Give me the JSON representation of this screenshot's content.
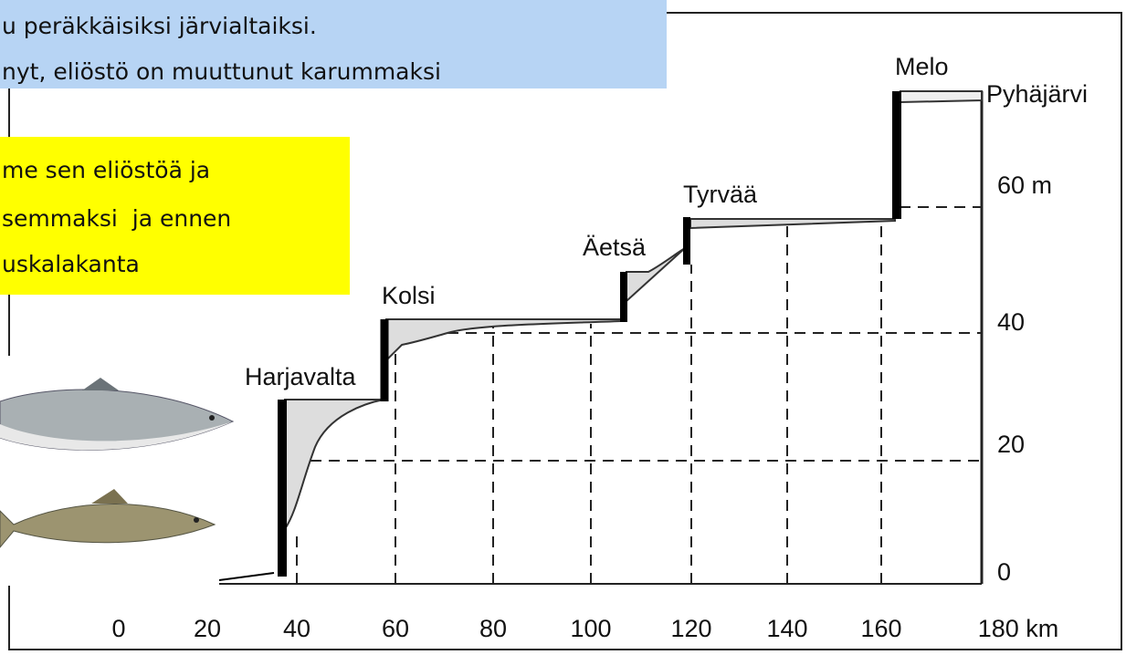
{
  "header": {
    "lines": [
      "u peräkkäisiksi järvialtaiksi.",
      "nyt, eliöstö on muuttunut karummaksi"
    ]
  },
  "note": {
    "lines": [
      "me sen eliöstöä ja",
      "semmaksi  ja ennen",
      "uskalakanta"
    ]
  },
  "diagram": {
    "dams": [
      "Harjavalta",
      "Kolsi",
      "Äetsä",
      "Tyrvää",
      "Melo"
    ],
    "lake": "Pyhäjärvi",
    "y_labels": [
      "60 m",
      "40",
      "20",
      "0"
    ],
    "x_labels": [
      "0",
      "20",
      "40",
      "60",
      "80",
      "100",
      "120",
      "140",
      "160",
      "180 km"
    ]
  }
}
